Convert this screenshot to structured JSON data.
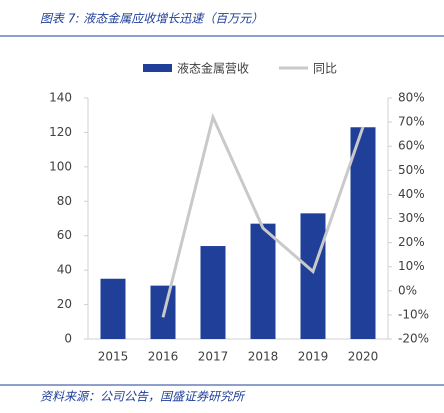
{
  "chart_data": {
    "type": "bar_line",
    "title": "图表 7: 液态金属应收增长迅速（百万元）",
    "source": "资料来源：公司公告，国盛证券研究所",
    "categories": [
      "2015",
      "2016",
      "2017",
      "2018",
      "2019",
      "2020"
    ],
    "series": [
      {
        "name": "液态金属营收",
        "type": "bar",
        "color": "#1f3f99",
        "values": [
          35,
          31,
          54,
          67,
          73,
          123
        ]
      },
      {
        "name": "同比",
        "type": "line",
        "axis": "y2",
        "color": "#c9c9c9",
        "values": [
          null,
          -11,
          72,
          26,
          8,
          68
        ]
      }
    ],
    "ylim": [
      0,
      140
    ],
    "yticks": [
      0,
      20,
      40,
      60,
      80,
      100,
      120,
      140
    ],
    "y2lim": [
      -20,
      80
    ],
    "y2ticks": [
      {
        "value": -20,
        "label": "-20%"
      },
      {
        "value": -10,
        "label": "-10%"
      },
      {
        "value": 0,
        "label": "0%"
      },
      {
        "value": 10,
        "label": "10%"
      },
      {
        "value": 20,
        "label": "20%"
      },
      {
        "value": 30,
        "label": "30%"
      },
      {
        "value": 40,
        "label": "40%"
      },
      {
        "value": 50,
        "label": "50%"
      },
      {
        "value": 60,
        "label": "60%"
      },
      {
        "value": 70,
        "label": "70%"
      },
      {
        "value": 80,
        "label": "80%"
      }
    ],
    "legend": "top"
  }
}
